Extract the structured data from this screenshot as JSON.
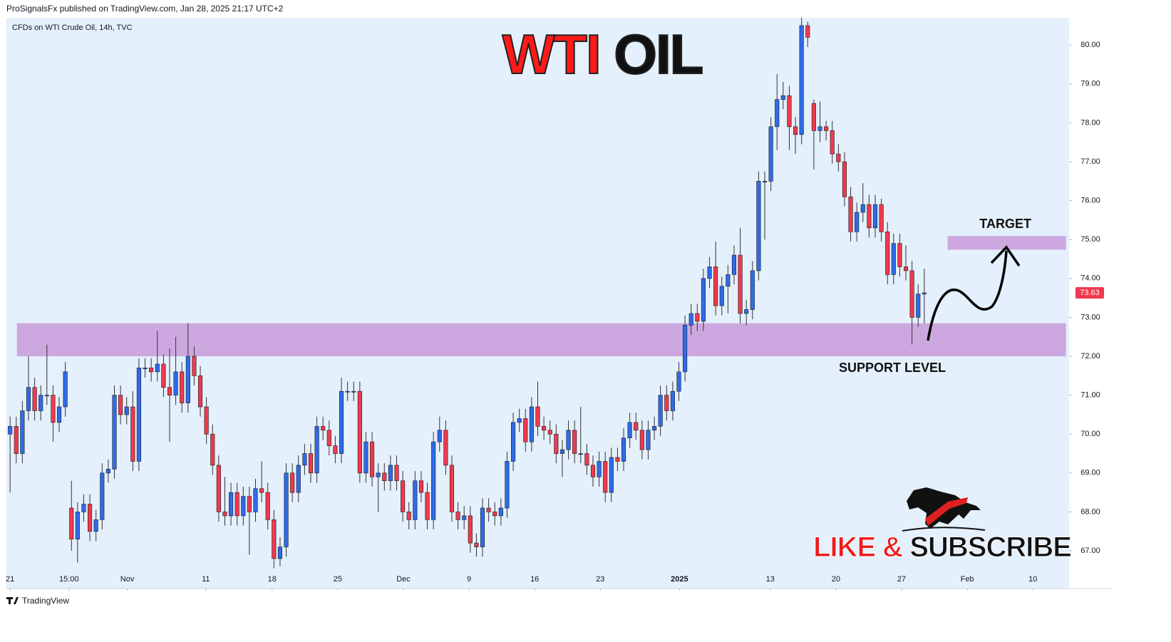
{
  "header": {
    "publisher": "ProSignalsFx published on TradingView.com, Jan 28, 2025 21:17 UTC+2",
    "footer": "TradingView"
  },
  "branding": {
    "cta_parts": [
      "LIKE &",
      "SUBSCRIBE"
    ]
  },
  "chart_data": {
    "type": "candlestick",
    "subtitle": "CFDs on WTI Crude Oil, 14h, TVC",
    "title_parts": [
      {
        "text": "WTI",
        "color": "#ff1a1a"
      },
      {
        "text": "OIL",
        "color": "#111111"
      }
    ],
    "up_color": "#2f6bea",
    "down_color": "#f0394f",
    "open": [
      70.0,
      70.2,
      69.5,
      70.6,
      71.2,
      70.6,
      71.0,
      71.0,
      70.3,
      70.7,
      68.1,
      67.3,
      68.0,
      68.2,
      67.5,
      67.8,
      69.0,
      69.1,
      71.0,
      70.5,
      70.7,
      69.3,
      71.7,
      71.7,
      71.6,
      71.8,
      71.2,
      71.0,
      71.6,
      70.8,
      72.0,
      71.5,
      70.7,
      70.0,
      69.2,
      68.0,
      67.9,
      68.5,
      67.9,
      68.4,
      68.0,
      68.6,
      68.5,
      67.8,
      66.8,
      67.1,
      69.0,
      68.5,
      69.2,
      69.5,
      69.0,
      70.2,
      70.1,
      69.7,
      69.5,
      71.1,
      71.1,
      71.1,
      69.0,
      69.8,
      68.9,
      69.0,
      68.8,
      69.2,
      68.8,
      68.0,
      67.8,
      68.8,
      68.5,
      67.8,
      69.8,
      70.1,
      69.2,
      68.0,
      67.8,
      67.9,
      67.2,
      67.1,
      68.1,
      68.0,
      67.9,
      68.1,
      69.3,
      70.3,
      70.4,
      69.8,
      70.7,
      70.2,
      70.1,
      70.0,
      69.5,
      69.6,
      70.1,
      69.5,
      69.5,
      69.2,
      68.9,
      69.3,
      68.5,
      69.4,
      69.3,
      69.9,
      70.3,
      70.1,
      69.6,
      70.1,
      70.2,
      71.0,
      70.6,
      71.1,
      71.6,
      72.8,
      73.1,
      72.9,
      74.0,
      74.3,
      73.3,
      73.8,
      74.1,
      74.6,
      73.1,
      73.2,
      74.2,
      76.5,
      76.5,
      77.9,
      78.6,
      78.7,
      77.9,
      77.7,
      80.5,
      78.5,
      77.8,
      77.9,
      77.8,
      77.2,
      77.0,
      76.1,
      75.2,
      75.7,
      75.9,
      75.3,
      75.9,
      75.2,
      74.1,
      74.9,
      74.3,
      74.2,
      73.0,
      73.6
    ],
    "high": [
      70.45,
      70.45,
      70.85,
      72.0,
      71.45,
      71.25,
      72.3,
      71.25,
      70.95,
      71.85,
      68.8,
      68.25,
      68.45,
      68.45,
      68.05,
      69.25,
      69.35,
      71.25,
      71.25,
      70.95,
      71.1,
      71.95,
      71.95,
      71.95,
      72.65,
      72.05,
      72.2,
      72.5,
      71.85,
      72.85,
      72.25,
      71.75,
      70.95,
      70.25,
      69.45,
      68.9,
      68.75,
      68.75,
      68.65,
      68.65,
      68.85,
      69.3,
      68.75,
      68.05,
      67.35,
      69.25,
      69.25,
      69.45,
      69.75,
      69.75,
      70.45,
      70.45,
      70.35,
      69.95,
      71.45,
      71.35,
      71.35,
      71.35,
      70.05,
      70.05,
      69.25,
      69.25,
      69.45,
      69.45,
      69.05,
      68.25,
      69.05,
      69.05,
      68.75,
      70.05,
      70.45,
      70.35,
      69.45,
      68.25,
      68.15,
      68.15,
      67.45,
      68.35,
      68.35,
      68.25,
      68.35,
      69.55,
      70.55,
      70.65,
      70.65,
      70.95,
      71.35,
      70.45,
      70.35,
      70.25,
      69.85,
      70.35,
      70.35,
      70.7,
      69.75,
      69.45,
      69.55,
      69.55,
      69.65,
      69.65,
      70.15,
      70.55,
      70.55,
      70.35,
      70.35,
      70.45,
      71.25,
      71.25,
      71.35,
      71.85,
      73.05,
      73.35,
      73.35,
      74.25,
      74.55,
      74.95,
      74.05,
      74.35,
      74.85,
      75.3,
      73.45,
      74.45,
      76.75,
      76.75,
      78.15,
      79.25,
      79.05,
      78.95,
      78.15,
      80.7,
      80.6,
      78.6,
      78.55,
      78.05,
      78.05,
      77.45,
      77.25,
      76.35,
      75.95,
      76.45,
      76.15,
      76.15,
      76.05,
      75.45,
      75.15,
      75.15,
      74.85,
      74.45,
      73.85,
      74.25
    ],
    "low": [
      68.5,
      69.25,
      69.25,
      70.35,
      70.35,
      70.35,
      70.75,
      69.8,
      70.05,
      70.45,
      67.0,
      66.7,
      67.75,
      67.25,
      67.25,
      67.55,
      68.75,
      68.85,
      70.25,
      70.25,
      69.05,
      69.05,
      71.45,
      71.35,
      71.35,
      70.95,
      69.8,
      70.75,
      70.55,
      70.55,
      71.25,
      70.45,
      69.75,
      68.95,
      67.75,
      67.65,
      67.65,
      67.65,
      67.65,
      66.9,
      67.75,
      68.25,
      67.55,
      66.55,
      66.6,
      66.85,
      68.25,
      68.25,
      68.95,
      68.75,
      68.75,
      69.85,
      69.45,
      69.25,
      69.25,
      70.85,
      70.85,
      68.75,
      68.75,
      68.65,
      68.0,
      68.55,
      68.55,
      68.55,
      67.75,
      67.55,
      67.55,
      68.25,
      67.55,
      67.55,
      69.55,
      68.95,
      67.75,
      67.55,
      67.55,
      66.95,
      66.85,
      66.85,
      67.75,
      67.65,
      67.65,
      67.85,
      69.05,
      70.05,
      69.55,
      69.55,
      69.95,
      69.85,
      69.75,
      69.25,
      68.9,
      69.35,
      69.25,
      69.25,
      68.95,
      68.65,
      68.65,
      68.25,
      68.25,
      69.05,
      69.05,
      69.65,
      69.85,
      69.35,
      69.35,
      69.85,
      69.95,
      70.35,
      70.35,
      70.85,
      71.35,
      72.55,
      72.65,
      72.65,
      73.75,
      73.05,
      73.05,
      73.1,
      73.85,
      72.85,
      72.8,
      72.95,
      73.95,
      75.0,
      76.25,
      77.3,
      78.35,
      77.3,
      77.2,
      77.45,
      79.95,
      76.8,
      77.5,
      77.55,
      76.95,
      76.75,
      75.85,
      74.95,
      74.95,
      75.45,
      75.05,
      75.05,
      74.95,
      73.85,
      73.85,
      74.05,
      73.95,
      72.3,
      72.75,
      72.85
    ],
    "close": [
      70.2,
      69.5,
      70.6,
      71.2,
      70.6,
      71.0,
      71.0,
      70.3,
      70.7,
      71.6,
      67.3,
      68.0,
      68.2,
      67.5,
      67.8,
      69.0,
      69.1,
      71.0,
      70.5,
      70.7,
      69.3,
      71.7,
      71.7,
      71.6,
      71.8,
      71.2,
      71.0,
      71.6,
      70.8,
      72.0,
      71.5,
      70.7,
      70.0,
      69.2,
      68.0,
      67.9,
      68.5,
      67.9,
      68.4,
      68.0,
      68.6,
      68.5,
      67.8,
      66.8,
      67.1,
      69.0,
      68.5,
      69.2,
      69.5,
      69.0,
      70.2,
      70.1,
      69.7,
      69.5,
      71.1,
      71.1,
      71.1,
      69.0,
      69.8,
      68.9,
      69.0,
      68.8,
      69.2,
      68.8,
      68.0,
      67.8,
      68.8,
      68.5,
      67.8,
      69.8,
      70.1,
      69.2,
      68.0,
      67.8,
      67.9,
      67.2,
      67.1,
      68.1,
      68.0,
      67.9,
      68.1,
      69.3,
      70.3,
      70.4,
      69.8,
      70.7,
      70.2,
      70.1,
      70.0,
      69.5,
      69.6,
      70.1,
      69.5,
      69.5,
      69.2,
      68.9,
      69.3,
      68.5,
      69.4,
      69.3,
      69.9,
      70.3,
      70.1,
      69.6,
      70.1,
      70.2,
      71.0,
      70.6,
      71.1,
      71.6,
      72.8,
      73.1,
      72.9,
      74.0,
      74.3,
      73.3,
      73.8,
      74.1,
      74.6,
      73.1,
      73.2,
      74.2,
      76.5,
      76.5,
      77.9,
      78.6,
      78.7,
      77.9,
      77.7,
      80.5,
      80.2,
      77.8,
      77.9,
      77.8,
      77.2,
      77.0,
      76.1,
      75.2,
      75.7,
      75.9,
      75.3,
      75.9,
      75.2,
      74.1,
      74.9,
      74.3,
      74.2,
      73.0,
      73.6,
      73.63
    ],
    "xlim": [
      -0.6,
      172.6
    ],
    "xticks": [
      {
        "value": 0,
        "label": "21"
      },
      {
        "value": 9.6,
        "label": "15:00"
      },
      {
        "value": 19.1,
        "label": "Nov"
      },
      {
        "value": 31.9,
        "label": "11"
      },
      {
        "value": 42.7,
        "label": "18"
      },
      {
        "value": 53.4,
        "label": "25"
      },
      {
        "value": 64.1,
        "label": "Dec"
      },
      {
        "value": 74.8,
        "label": "9"
      },
      {
        "value": 85.5,
        "label": "16"
      },
      {
        "value": 96.2,
        "label": "23"
      },
      {
        "value": 109.1,
        "label": "2025"
      },
      {
        "value": 123.9,
        "label": "13"
      },
      {
        "value": 134.6,
        "label": "20"
      },
      {
        "value": 145.3,
        "label": "27"
      },
      {
        "value": 156.0,
        "label": "Feb"
      },
      {
        "value": 166.7,
        "label": "10"
      }
    ],
    "ylim": [
      66.03,
      80.7
    ],
    "yticks": [
      {
        "value": 67,
        "label": "67.00"
      },
      {
        "value": 68,
        "label": "68.00"
      },
      {
        "value": 69,
        "label": "69.00"
      },
      {
        "value": 70,
        "label": "70.00"
      },
      {
        "value": 71,
        "label": "71.00"
      },
      {
        "value": 72,
        "label": "72.00"
      },
      {
        "value": 73,
        "label": "73.00"
      },
      {
        "value": 74,
        "label": "74.00"
      },
      {
        "value": 75,
        "label": "75.00"
      },
      {
        "value": 76,
        "label": "76.00"
      },
      {
        "value": 77,
        "label": "77.00"
      },
      {
        "value": 78,
        "label": "78.00"
      },
      {
        "value": 79,
        "label": "79.00"
      },
      {
        "value": 80,
        "label": "80.00"
      }
    ],
    "zones": [
      {
        "label": "SUPPORT LEVEL",
        "range": [
          72.0,
          72.85
        ],
        "x": [
          1.1,
          172.1
        ],
        "color": "#cda8e0"
      },
      {
        "label": "TARGET",
        "range": [
          74.74,
          75.09
        ],
        "x": [
          152.8,
          172.1
        ],
        "color": "#cda8e0"
      }
    ]
  }
}
